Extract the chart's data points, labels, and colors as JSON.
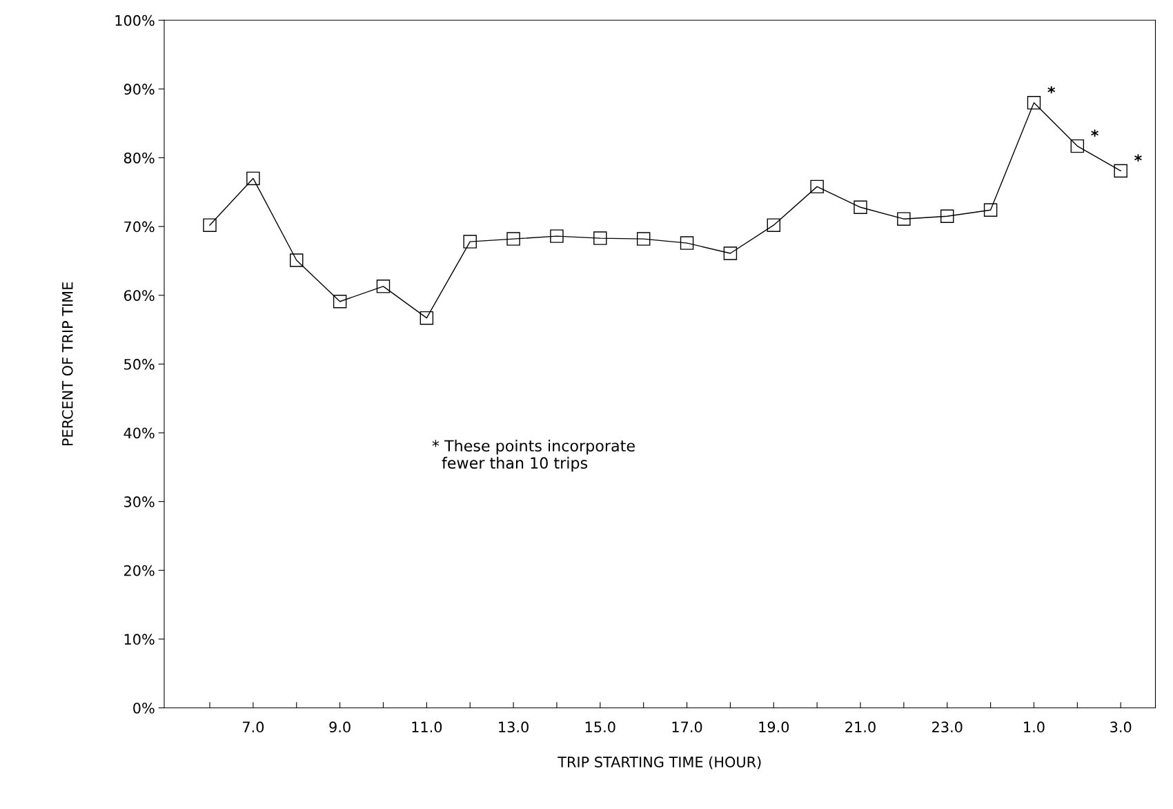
{
  "chart_data": {
    "type": "line",
    "xlabel": "TRIP STARTING TIME (HOUR)",
    "ylabel": "PERCENT OF TRIP TIME",
    "categories": [
      null,
      "7.0",
      null,
      "9.0",
      null,
      "11.0",
      null,
      "13.0",
      null,
      "15.0",
      null,
      "17.0",
      null,
      "19.0",
      null,
      "21.0",
      null,
      "23.0",
      null,
      "1.0",
      null,
      "3.0"
    ],
    "series": [
      {
        "color": "#000000",
        "values": [
          70.2,
          77.0,
          65.1,
          59.1,
          61.3,
          56.7,
          67.8,
          68.2,
          68.6,
          68.3,
          68.2,
          67.6,
          66.1,
          70.2,
          75.8,
          72.8,
          71.1,
          71.5,
          72.4,
          88.0,
          81.7,
          78.1
        ],
        "value_labels": [
          null,
          null,
          null,
          null,
          null,
          null,
          null,
          null,
          null,
          null,
          null,
          null,
          null,
          null,
          null,
          null,
          null,
          null,
          null,
          "*",
          "*",
          "*"
        ]
      }
    ],
    "ylim": [
      0,
      100
    ],
    "yticks": [
      {
        "value": 0,
        "label": "0%"
      },
      {
        "value": 10,
        "label": "10%"
      },
      {
        "value": 20,
        "label": "20%"
      },
      {
        "value": 30,
        "label": "30%"
      },
      {
        "value": 40,
        "label": "40%"
      },
      {
        "value": 50,
        "label": "50%"
      },
      {
        "value": 60,
        "label": "60%"
      },
      {
        "value": 70,
        "label": "70%"
      },
      {
        "value": 80,
        "label": "80%"
      },
      {
        "value": 90,
        "label": "90%"
      },
      {
        "value": 100,
        "label": "100%"
      }
    ],
    "marker": "square",
    "line_style": "solid",
    "grid": false,
    "legend": false,
    "annotations": [
      "* These points incorporate\n  fewer than 10 trips"
    ]
  }
}
